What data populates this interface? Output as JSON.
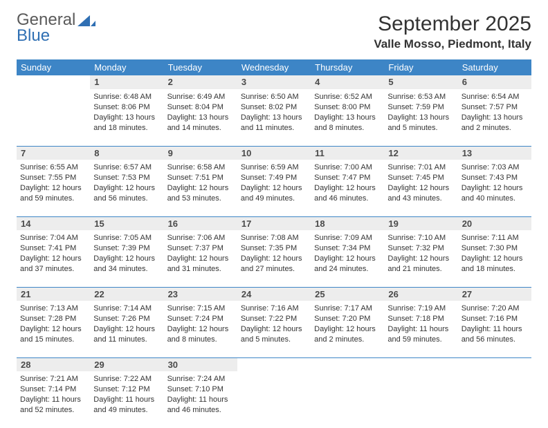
{
  "logo": {
    "line1": "General",
    "line2": "Blue"
  },
  "title": "September 2025",
  "location": "Valle Mosso, Piedmont, Italy",
  "colors": {
    "header_bg": "#3d85c6",
    "header_text": "#ffffff",
    "daynum_bg": "#ededed",
    "border": "#3d85c6",
    "logo_general": "#5a5a5a",
    "logo_blue": "#2f6fb3"
  },
  "weekdays": [
    "Sunday",
    "Monday",
    "Tuesday",
    "Wednesday",
    "Thursday",
    "Friday",
    "Saturday"
  ],
  "weeks": [
    {
      "nums": [
        "",
        "1",
        "2",
        "3",
        "4",
        "5",
        "6"
      ],
      "cells": [
        {},
        {
          "sunrise": "6:48 AM",
          "sunset": "8:06 PM",
          "daylight": "13 hours and 18 minutes."
        },
        {
          "sunrise": "6:49 AM",
          "sunset": "8:04 PM",
          "daylight": "13 hours and 14 minutes."
        },
        {
          "sunrise": "6:50 AM",
          "sunset": "8:02 PM",
          "daylight": "13 hours and 11 minutes."
        },
        {
          "sunrise": "6:52 AM",
          "sunset": "8:00 PM",
          "daylight": "13 hours and 8 minutes."
        },
        {
          "sunrise": "6:53 AM",
          "sunset": "7:59 PM",
          "daylight": "13 hours and 5 minutes."
        },
        {
          "sunrise": "6:54 AM",
          "sunset": "7:57 PM",
          "daylight": "13 hours and 2 minutes."
        }
      ]
    },
    {
      "nums": [
        "7",
        "8",
        "9",
        "10",
        "11",
        "12",
        "13"
      ],
      "cells": [
        {
          "sunrise": "6:55 AM",
          "sunset": "7:55 PM",
          "daylight": "12 hours and 59 minutes."
        },
        {
          "sunrise": "6:57 AM",
          "sunset": "7:53 PM",
          "daylight": "12 hours and 56 minutes."
        },
        {
          "sunrise": "6:58 AM",
          "sunset": "7:51 PM",
          "daylight": "12 hours and 53 minutes."
        },
        {
          "sunrise": "6:59 AM",
          "sunset": "7:49 PM",
          "daylight": "12 hours and 49 minutes."
        },
        {
          "sunrise": "7:00 AM",
          "sunset": "7:47 PM",
          "daylight": "12 hours and 46 minutes."
        },
        {
          "sunrise": "7:01 AM",
          "sunset": "7:45 PM",
          "daylight": "12 hours and 43 minutes."
        },
        {
          "sunrise": "7:03 AM",
          "sunset": "7:43 PM",
          "daylight": "12 hours and 40 minutes."
        }
      ]
    },
    {
      "nums": [
        "14",
        "15",
        "16",
        "17",
        "18",
        "19",
        "20"
      ],
      "cells": [
        {
          "sunrise": "7:04 AM",
          "sunset": "7:41 PM",
          "daylight": "12 hours and 37 minutes."
        },
        {
          "sunrise": "7:05 AM",
          "sunset": "7:39 PM",
          "daylight": "12 hours and 34 minutes."
        },
        {
          "sunrise": "7:06 AM",
          "sunset": "7:37 PM",
          "daylight": "12 hours and 31 minutes."
        },
        {
          "sunrise": "7:08 AM",
          "sunset": "7:35 PM",
          "daylight": "12 hours and 27 minutes."
        },
        {
          "sunrise": "7:09 AM",
          "sunset": "7:34 PM",
          "daylight": "12 hours and 24 minutes."
        },
        {
          "sunrise": "7:10 AM",
          "sunset": "7:32 PM",
          "daylight": "12 hours and 21 minutes."
        },
        {
          "sunrise": "7:11 AM",
          "sunset": "7:30 PM",
          "daylight": "12 hours and 18 minutes."
        }
      ]
    },
    {
      "nums": [
        "21",
        "22",
        "23",
        "24",
        "25",
        "26",
        "27"
      ],
      "cells": [
        {
          "sunrise": "7:13 AM",
          "sunset": "7:28 PM",
          "daylight": "12 hours and 15 minutes."
        },
        {
          "sunrise": "7:14 AM",
          "sunset": "7:26 PM",
          "daylight": "12 hours and 11 minutes."
        },
        {
          "sunrise": "7:15 AM",
          "sunset": "7:24 PM",
          "daylight": "12 hours and 8 minutes."
        },
        {
          "sunrise": "7:16 AM",
          "sunset": "7:22 PM",
          "daylight": "12 hours and 5 minutes."
        },
        {
          "sunrise": "7:17 AM",
          "sunset": "7:20 PM",
          "daylight": "12 hours and 2 minutes."
        },
        {
          "sunrise": "7:19 AM",
          "sunset": "7:18 PM",
          "daylight": "11 hours and 59 minutes."
        },
        {
          "sunrise": "7:20 AM",
          "sunset": "7:16 PM",
          "daylight": "11 hours and 56 minutes."
        }
      ]
    },
    {
      "nums": [
        "28",
        "29",
        "30",
        "",
        "",
        "",
        ""
      ],
      "cells": [
        {
          "sunrise": "7:21 AM",
          "sunset": "7:14 PM",
          "daylight": "11 hours and 52 minutes."
        },
        {
          "sunrise": "7:22 AM",
          "sunset": "7:12 PM",
          "daylight": "11 hours and 49 minutes."
        },
        {
          "sunrise": "7:24 AM",
          "sunset": "7:10 PM",
          "daylight": "11 hours and 46 minutes."
        },
        {},
        {},
        {},
        {}
      ]
    }
  ],
  "labels": {
    "sunrise": "Sunrise:",
    "sunset": "Sunset:",
    "daylight": "Daylight:"
  }
}
